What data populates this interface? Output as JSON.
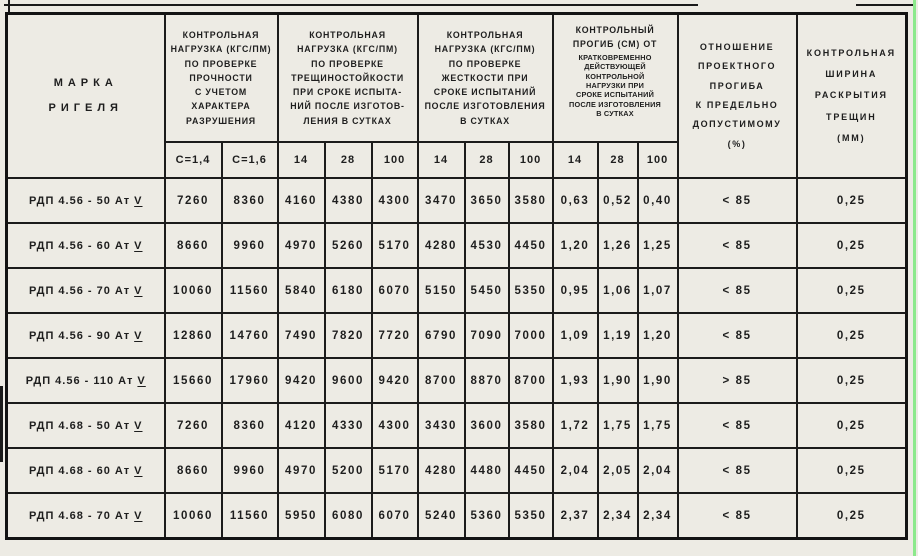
{
  "colors": {
    "paper": "#edebe4",
    "ink": "#1a1a1a",
    "edge_strip_green": "#8ce98c"
  },
  "headers": {
    "mark": "МАРКА\nРИГЕЛЯ",
    "strength": "КОНТРОЛЬНАЯ\nНАГРУЗКА (КГС/ПМ)\nПО ПРОВЕРКЕ\nПРОЧНОСТИ\nС УЧЕТОМ\nХАРАКТЕРА\nРАЗРУШЕНИЯ",
    "crack_resistance": "КОНТРОЛЬНАЯ\nНАГРУЗКА (КГС/ПМ)\nПО ПРОВЕРКЕ\nТРЕЩИНОСТОЙКОСТИ\nПРИ СРОКЕ ИСПЫТА-\nНИЙ ПОСЛЕ ИЗГОТОВ-\nЛЕНИЯ В СУТКАХ",
    "stiffness": "КОНТРОЛЬНАЯ\nНАГРУЗКА (КГС/ПМ)\nПО ПРОВЕРКЕ\nЖЕСТКОСТИ ПРИ\nСРОКЕ ИСПЫТАНИЙ\nПОСЛЕ ИЗГОТОВЛЕНИЯ\nВ СУТКАХ",
    "deflection_main": "КОНТРОЛЬНЫЙ\nПРОГИБ (СМ) ОТ",
    "deflection_small": "КРАТКОВРЕМЕННО\nДЕЙСТВУЮЩЕЙ\nКОНТРОЛЬНОЙ\nНАГРУЗКИ ПРИ\nСРОКЕ ИСПЫТАНИЙ\nПОСЛЕ ИЗГОТОВЛЕНИЯ\nВ СУТКАХ",
    "ratio": "ОТНОШЕНИЕ\nПРОЕКТНОГО\nПРОГИБА\nК ПРЕДЕЛЬНО\nДОПУСТИМОМУ\n(%)",
    "crack_width": "КОНТРОЛЬНАЯ\nШИРИНА\nРАСКРЫТИЯ\nТРЕЩИН\n(ММ)"
  },
  "subheaders": [
    "С=1,4",
    "С=1,6",
    "14",
    "28",
    "100",
    "14",
    "28",
    "100",
    "14",
    "28",
    "100"
  ],
  "rows": [
    {
      "mark": "РДП 4.56 - 50 Ат",
      "numeral": "V",
      "strength_c14": "7260",
      "strength_c16": "8360",
      "crack_14": "4160",
      "crack_28": "4380",
      "crack_100": "4300",
      "stiff_14": "3470",
      "stiff_28": "3650",
      "stiff_100": "3580",
      "defl_14": "0,63",
      "defl_28": "0,52",
      "defl_100": "0,40",
      "ratio": "< 85",
      "width": "0,25"
    },
    {
      "mark": "РДП 4.56 - 60 Ат",
      "numeral": "V",
      "strength_c14": "8660",
      "strength_c16": "9960",
      "crack_14": "4970",
      "crack_28": "5260",
      "crack_100": "5170",
      "stiff_14": "4280",
      "stiff_28": "4530",
      "stiff_100": "4450",
      "defl_14": "1,20",
      "defl_28": "1,26",
      "defl_100": "1,25",
      "ratio": "< 85",
      "width": "0,25"
    },
    {
      "mark": "РДП 4.56 - 70 Ат",
      "numeral": "V",
      "strength_c14": "10060",
      "strength_c16": "11560",
      "crack_14": "5840",
      "crack_28": "6180",
      "crack_100": "6070",
      "stiff_14": "5150",
      "stiff_28": "5450",
      "stiff_100": "5350",
      "defl_14": "0,95",
      "defl_28": "1,06",
      "defl_100": "1,07",
      "ratio": "< 85",
      "width": "0,25"
    },
    {
      "mark": "РДП 4.56 - 90 Ат",
      "numeral": "V",
      "strength_c14": "12860",
      "strength_c16": "14760",
      "crack_14": "7490",
      "crack_28": "7820",
      "crack_100": "7720",
      "stiff_14": "6790",
      "stiff_28": "7090",
      "stiff_100": "7000",
      "defl_14": "1,09",
      "defl_28": "1,19",
      "defl_100": "1,20",
      "ratio": "< 85",
      "width": "0,25"
    },
    {
      "mark": "РДП 4.56 - 110 Ат",
      "numeral": "V",
      "strength_c14": "15660",
      "strength_c16": "17960",
      "crack_14": "9420",
      "crack_28": "9600",
      "crack_100": "9420",
      "stiff_14": "8700",
      "stiff_28": "8870",
      "stiff_100": "8700",
      "defl_14": "1,93",
      "defl_28": "1,90",
      "defl_100": "1,90",
      "ratio": "> 85",
      "width": "0,25"
    },
    {
      "mark": "РДП 4.68 - 50 Ат",
      "numeral": "V",
      "strength_c14": "7260",
      "strength_c16": "8360",
      "crack_14": "4120",
      "crack_28": "4330",
      "crack_100": "4300",
      "stiff_14": "3430",
      "stiff_28": "3600",
      "stiff_100": "3580",
      "defl_14": "1,72",
      "defl_28": "1,75",
      "defl_100": "1,75",
      "ratio": "< 85",
      "width": "0,25"
    },
    {
      "mark": "РДП 4.68 - 60 Ат",
      "numeral": "V",
      "strength_c14": "8660",
      "strength_c16": "9960",
      "crack_14": "4970",
      "crack_28": "5200",
      "crack_100": "5170",
      "stiff_14": "4280",
      "stiff_28": "4480",
      "stiff_100": "4450",
      "defl_14": "2,04",
      "defl_28": "2,05",
      "defl_100": "2,04",
      "ratio": "< 85",
      "width": "0,25"
    },
    {
      "mark": "РДП 4.68 - 70 Ат",
      "numeral": "V",
      "strength_c14": "10060",
      "strength_c16": "11560",
      "crack_14": "5950",
      "crack_28": "6080",
      "crack_100": "6070",
      "stiff_14": "5240",
      "stiff_28": "5360",
      "stiff_100": "5350",
      "defl_14": "2,37",
      "defl_28": "2,34",
      "defl_100": "2,34",
      "ratio": "< 85",
      "width": "0,25"
    }
  ]
}
